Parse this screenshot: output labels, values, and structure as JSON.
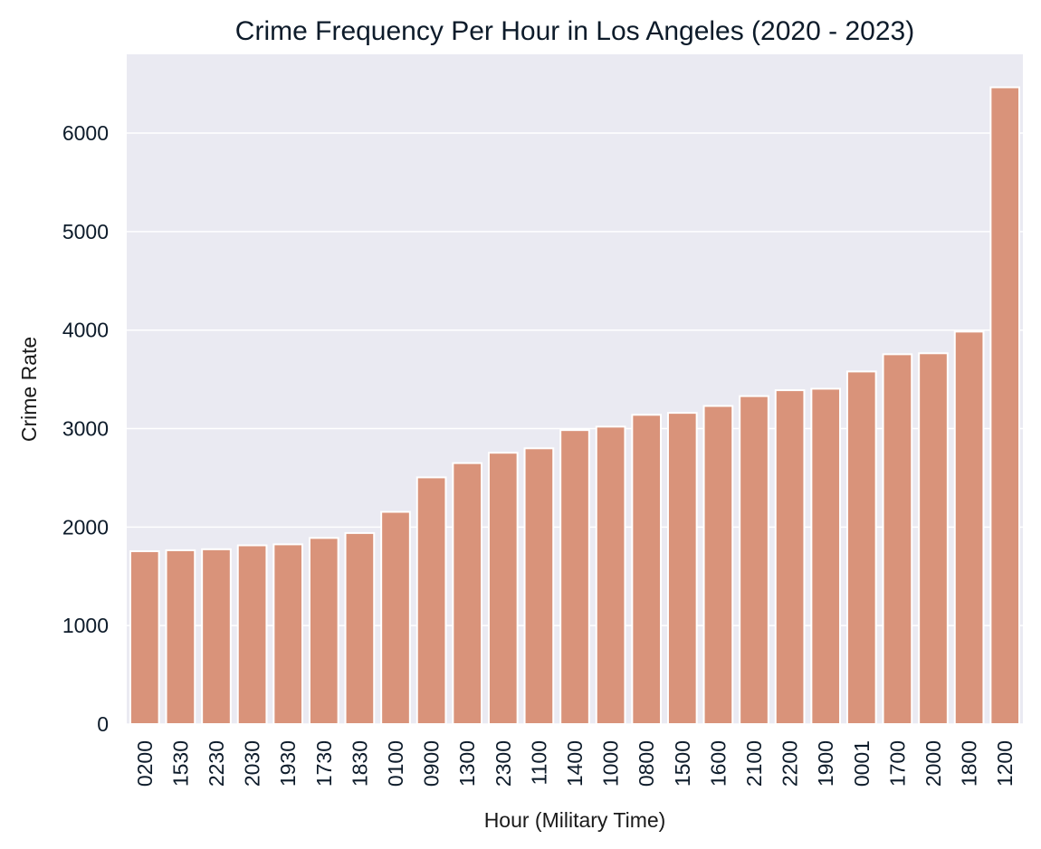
{
  "chart_data": {
    "type": "bar",
    "title": "Crime Frequency Per Hour in Los Angeles (2020 - 2023)",
    "xlabel": "Hour (Military Time)",
    "ylabel": "Crime Rate",
    "categories": [
      "0200",
      "1530",
      "2230",
      "2030",
      "1930",
      "1730",
      "1830",
      "0100",
      "0900",
      "1300",
      "2300",
      "1100",
      "1400",
      "1000",
      "0800",
      "1500",
      "1600",
      "2100",
      "2200",
      "1900",
      "0001",
      "1700",
      "2000",
      "1800",
      "1200"
    ],
    "values": [
      1755,
      1765,
      1775,
      1815,
      1825,
      1890,
      1940,
      2155,
      2505,
      2650,
      2755,
      2800,
      2985,
      3020,
      3140,
      3160,
      3230,
      3330,
      3390,
      3405,
      3580,
      3755,
      3765,
      3985,
      6465
    ],
    "ylim": [
      0,
      6800
    ],
    "yticks": [
      0,
      1000,
      2000,
      3000,
      4000,
      5000,
      6000
    ],
    "grid": true,
    "bar_color": "#d9937a",
    "plot_background": "#eaeaf2",
    "grid_color": "#ffffff"
  }
}
